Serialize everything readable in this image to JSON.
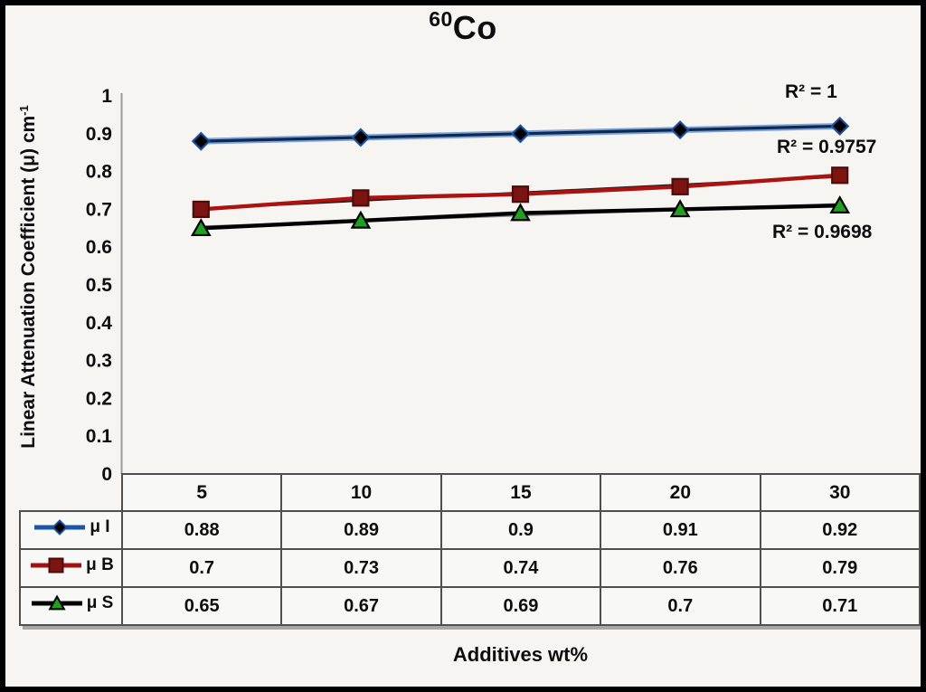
{
  "title": {
    "sup": "60",
    "main": "Co"
  },
  "y_axis": {
    "title_main": "Linear Attenuation Coefficient (μ) cm",
    "title_sup": "-1",
    "ticks": [
      "1",
      "0.9",
      "0.8",
      "0.7",
      "0.6",
      "0.5",
      "0.4",
      "0.3",
      "0.2",
      "0.1",
      "0"
    ]
  },
  "x_axis": {
    "title": "Additives wt%"
  },
  "colors": {
    "background": "#f6f5f2",
    "axis_line": "#999999",
    "table_border": "#4f4f4f",
    "table_shadow": "#a8a8a6",
    "text": "#0d0d0d"
  },
  "chart_data": {
    "type": "line",
    "title": "60Co",
    "xlabel": "Additives wt%",
    "ylabel": "Linear Attenuation Coefficient (μ) cm-1",
    "ylim": [
      0,
      1
    ],
    "y_tick_step": 0.1,
    "grid": false,
    "legend_position": "table-left",
    "categories": [
      "5",
      "10",
      "15",
      "20",
      "30"
    ],
    "series": [
      {
        "name": "μ I",
        "values": [
          0.88,
          0.89,
          0.9,
          0.91,
          0.92
        ],
        "display_values": [
          "0.88",
          "0.89",
          "0.9",
          "0.91",
          "0.92"
        ],
        "r2_label": "R² = 1",
        "line_color": "#0e2a52",
        "legend_line_color": "#1b55a5",
        "trend_color": "#7da2d8",
        "marker": "diamond",
        "marker_fill": "#000000",
        "marker_stroke": "#1b4f9c"
      },
      {
        "name": "μ B",
        "values": [
          0.7,
          0.73,
          0.74,
          0.76,
          0.79
        ],
        "display_values": [
          "0.7",
          "0.73",
          "0.74",
          "0.76",
          "0.79"
        ],
        "r2_label": "R² = 0.9757",
        "line_color": "#ab1310",
        "legend_line_color": "#a01311",
        "trend_color": "#1a1a1a",
        "marker": "square",
        "marker_fill": "#7c1512",
        "marker_stroke": "#4d0c0a"
      },
      {
        "name": "μ S",
        "values": [
          0.65,
          0.67,
          0.69,
          0.7,
          0.71
        ],
        "display_values": [
          "0.65",
          "0.67",
          "0.69",
          "0.7",
          "0.71"
        ],
        "r2_label": "R² = 0.9698",
        "line_color": "#000000",
        "legend_line_color": "#000000",
        "trend_color": "#8c8c8c",
        "marker": "triangle",
        "marker_fill": "#1fa01f",
        "marker_stroke": "#000000"
      }
    ]
  }
}
